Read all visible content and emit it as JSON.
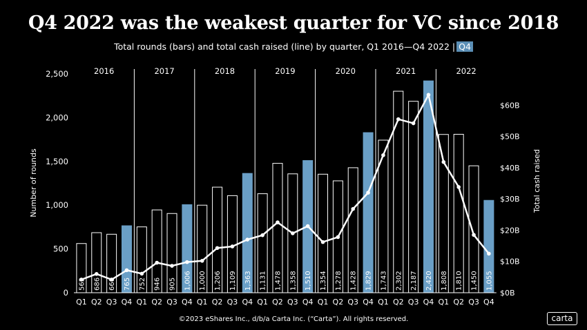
{
  "header": {
    "title": "Q4 2022 was the weakest quarter for VC since 2018",
    "subtitle": "Total rounds (bars) and total cash raised (line) by quarter, Q1 2016—Q4 2022 |",
    "subtitle_highlight": "Q4"
  },
  "footer": {
    "copyright": "©2023 eShares Inc., d/b/a Carta Inc. (“Carta”). All rights reserved.",
    "logo": "carta"
  },
  "colors": {
    "background": "#000000",
    "highlight_bar": "#6a9fc6",
    "bar_outline": "#ffffff",
    "line": "#ffffff"
  },
  "chart_data": {
    "type": "bar",
    "ylabel": "Number of rounds",
    "y2label": "Total cash raised",
    "ylim": [
      0,
      2500
    ],
    "y_ticks": [
      "0",
      "500",
      "1,000",
      "1,500",
      "2,000",
      "2,500"
    ],
    "y2lim": [
      0,
      70
    ],
    "y2_ticks": [
      "$0B",
      "$10B",
      "$20B",
      "$30B",
      "$40B",
      "$50B",
      "$60B"
    ],
    "years": [
      "2016",
      "2017",
      "2018",
      "2019",
      "2020",
      "2021",
      "2022"
    ],
    "categories": [
      "Q1",
      "Q2",
      "Q3",
      "Q4",
      "Q1",
      "Q2",
      "Q3",
      "Q4",
      "Q1",
      "Q2",
      "Q3",
      "Q4",
      "Q1",
      "Q2",
      "Q3",
      "Q4",
      "Q1",
      "Q2",
      "Q3",
      "Q4",
      "Q1",
      "Q2",
      "Q3",
      "Q4",
      "Q1",
      "Q2",
      "Q3",
      "Q4"
    ],
    "series": [
      {
        "name": "Total rounds",
        "values": [
          562,
          686,
          668,
          765,
          752,
          946,
          905,
          1006,
          1000,
          1206,
          1109,
          1363,
          1131,
          1478,
          1358,
          1510,
          1354,
          1278,
          1428,
          1829,
          1743,
          2302,
          2187,
          2420,
          1808,
          1810,
          1450,
          1055
        ],
        "labels": [
          "562",
          "686",
          "668",
          "765",
          "752",
          "946",
          "905",
          "1,006",
          "1,000",
          "1,206",
          "1,109",
          "1,363",
          "1,131",
          "1,478",
          "1,358",
          "1,510",
          "1,354",
          "1,278",
          "1,428",
          "1,829",
          "1,743",
          "2,302",
          "2,187",
          "2,420",
          "1,808",
          "1,810",
          "1,450",
          "1,055"
        ],
        "highlighted": [
          false,
          false,
          false,
          true,
          false,
          false,
          false,
          true,
          false,
          false,
          false,
          true,
          false,
          false,
          false,
          true,
          false,
          false,
          false,
          true,
          false,
          false,
          false,
          true,
          false,
          false,
          false,
          true
        ]
      },
      {
        "name": "Total cash raised",
        "values": [
          4.2,
          6.0,
          4.2,
          7.2,
          6.1,
          9.6,
          8.6,
          9.8,
          10.2,
          14.3,
          14.8,
          17.0,
          18.4,
          22.5,
          19.0,
          21.3,
          16.2,
          17.8,
          26.8,
          32.0,
          44.0,
          55.5,
          54.2,
          63.3,
          41.8,
          33.8,
          18.5,
          12.5
        ]
      }
    ],
    "grid": false
  }
}
